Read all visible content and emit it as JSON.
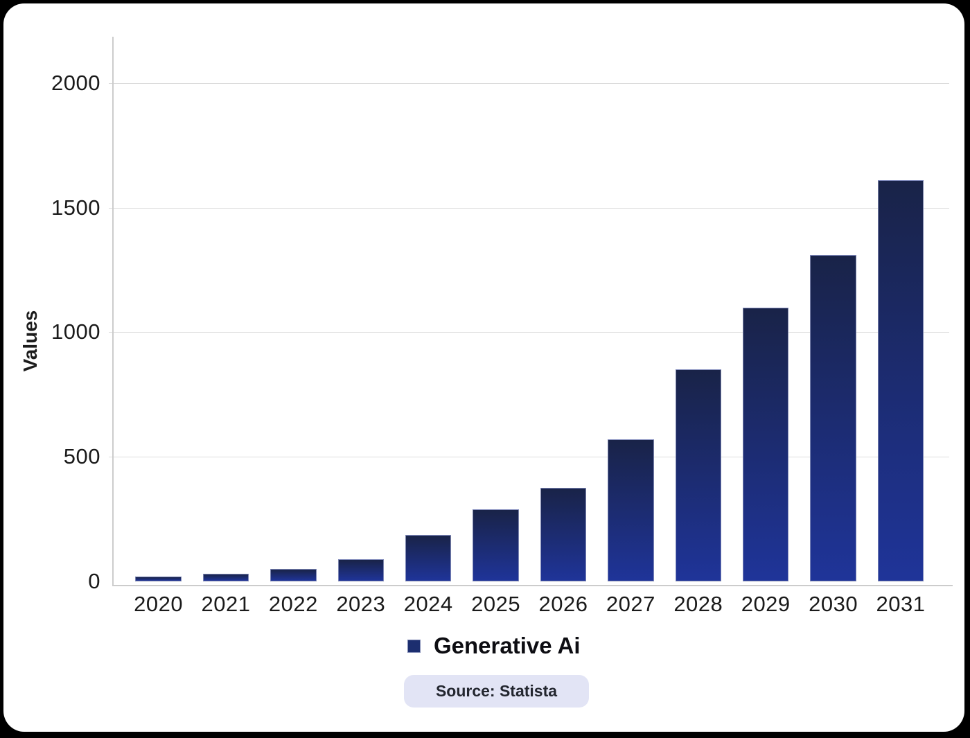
{
  "page": {
    "background": "#000000",
    "card_background": "#ffffff"
  },
  "chart_data": {
    "type": "bar",
    "title": "",
    "categories": [
      "2020",
      "2021",
      "2022",
      "2023",
      "2024",
      "2025",
      "2026",
      "2027",
      "2028",
      "2029",
      "2030",
      "2031"
    ],
    "series": [
      {
        "name": "Generative Ai",
        "values": [
          20,
          30,
          50,
          90,
          185,
          290,
          375,
          570,
          850,
          1100,
          1310,
          1610
        ]
      }
    ],
    "xlabel": "",
    "ylabel": "Values",
    "ylim": [
      0,
      2200
    ],
    "yticks": [
      0,
      500,
      1000,
      1500,
      2000
    ],
    "grid": "horizontal-only",
    "legend_position": "bottom",
    "annotations": [
      "Source: Statista"
    ]
  },
  "style": {
    "bar_gradient_top": "#192348",
    "bar_gradient_bottom": "#1f3499",
    "bar_border": "rgba(150,158,195,0.8)",
    "axis_line_color": "#cccccc",
    "grid_color": "#dcdcdc",
    "tick_color": "#1a1a1a"
  },
  "legend": {
    "label": "Generative Ai",
    "swatch_color": "#1c2e6f"
  },
  "source_badge": {
    "text": "Source: Statista",
    "bg": "#e2e4f5",
    "text_color": "#23262f"
  }
}
